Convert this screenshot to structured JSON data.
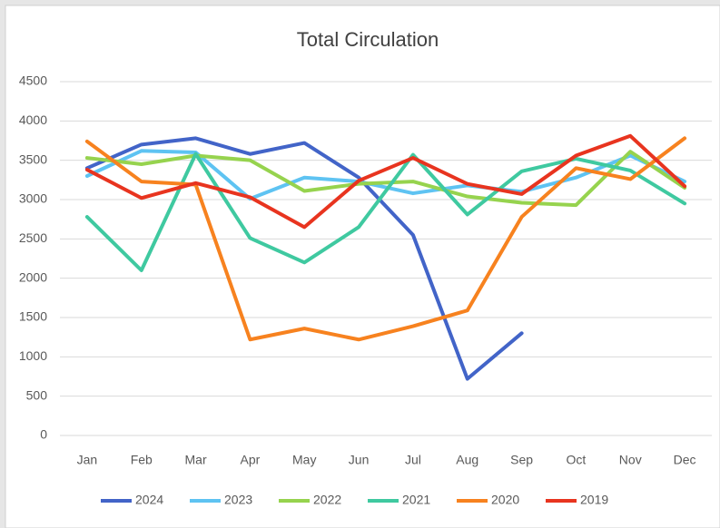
{
  "chart_data": {
    "type": "line",
    "title": "Total Circulation",
    "categories": [
      "Jan",
      "Feb",
      "Mar",
      "Apr",
      "May",
      "Jun",
      "Jul",
      "Aug",
      "Sep",
      "Oct",
      "Nov",
      "Dec"
    ],
    "series": [
      {
        "name": "2024",
        "color": "#4264c8",
        "values": [
          3400,
          3700,
          3780,
          3580,
          3720,
          3280,
          2550,
          720,
          1300,
          null,
          null,
          null
        ]
      },
      {
        "name": "2023",
        "color": "#5ec3f2",
        "values": [
          3300,
          3620,
          3600,
          3010,
          3280,
          3230,
          3080,
          3180,
          3100,
          3280,
          3560,
          3230
        ]
      },
      {
        "name": "2022",
        "color": "#96d34e",
        "values": [
          3530,
          3450,
          3560,
          3500,
          3110,
          3200,
          3230,
          3040,
          2960,
          2930,
          3610,
          3150
        ]
      },
      {
        "name": "2021",
        "color": "#3fc9a0",
        "values": [
          2780,
          2100,
          3580,
          2510,
          2200,
          2650,
          3570,
          2810,
          3360,
          3520,
          3370,
          2950
        ]
      },
      {
        "name": "2020",
        "color": "#f7821f",
        "values": [
          3740,
          3230,
          3190,
          1220,
          1360,
          1220,
          1390,
          1590,
          2780,
          3400,
          3260,
          3780
        ]
      },
      {
        "name": "2019",
        "color": "#e8341f",
        "values": [
          3380,
          3020,
          3210,
          3030,
          2650,
          3240,
          3530,
          3200,
          3070,
          3560,
          3810,
          3170
        ]
      }
    ],
    "ylim": [
      0,
      4500
    ],
    "yticks": [
      0,
      500,
      1000,
      1500,
      2000,
      2500,
      3000,
      3500,
      4000,
      4500
    ],
    "grid": true,
    "legend": "bottom"
  }
}
